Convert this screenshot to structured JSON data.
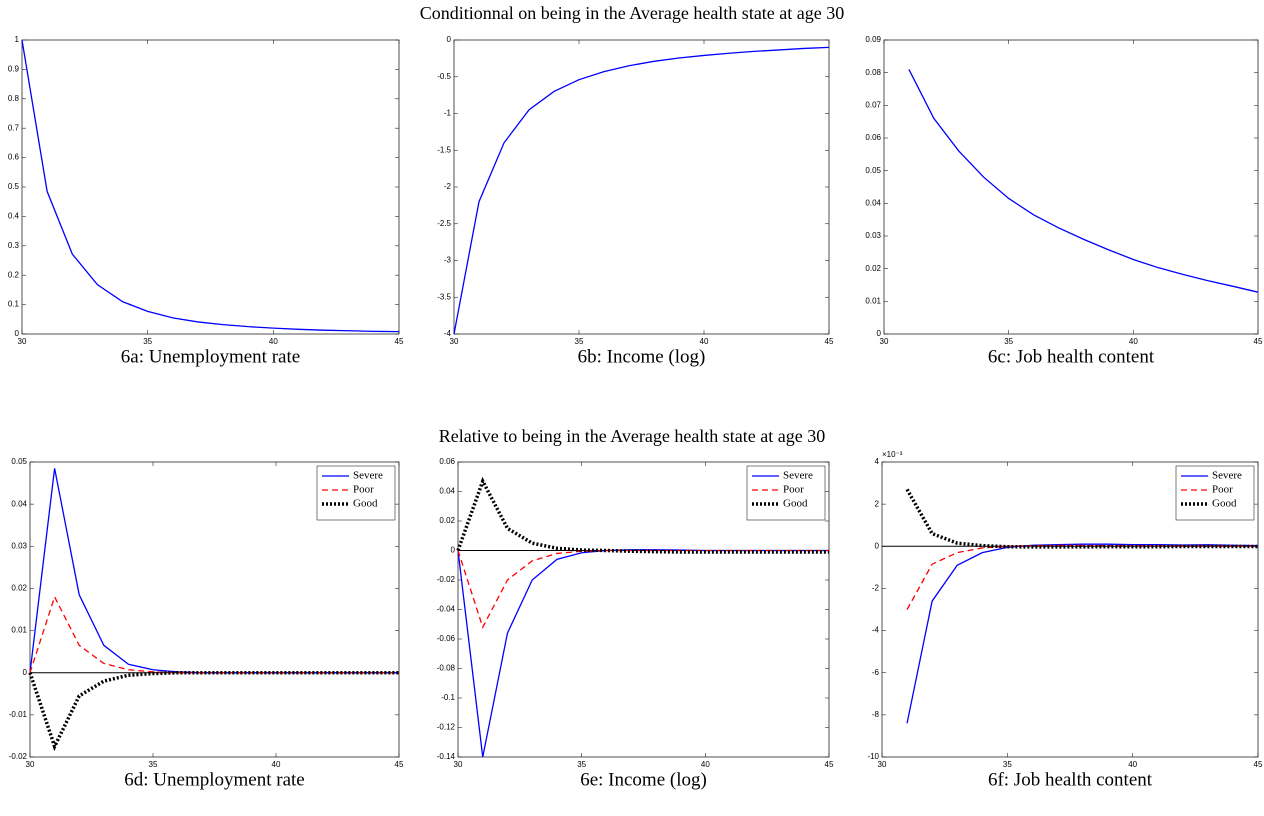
{
  "headings": [
    "Conditionnal on being in the Average health state at age 30",
    "Relative to being in the Average health state at age 30"
  ],
  "chart_data": [
    {
      "type": "line",
      "caption": "6a: Unemployment rate",
      "color": "#0000ff",
      "x": [
        30,
        31,
        32,
        33,
        34,
        35,
        36,
        37,
        38,
        39,
        40,
        41,
        42,
        43,
        44,
        45
      ],
      "values": [
        1,
        0.485,
        0.272,
        0.168,
        0.11,
        0.077,
        0.055,
        0.041,
        0.032,
        0.025,
        0.02,
        0.016,
        0.013,
        0.011,
        0.009,
        0.008
      ],
      "xlim": [
        30,
        45
      ],
      "xticks": [
        30,
        35,
        40,
        45
      ],
      "ylim": [
        0,
        1
      ],
      "yticks": [
        0,
        0.1,
        0.2,
        0.3,
        0.4,
        0.5,
        0.6,
        0.7,
        0.8,
        0.9,
        1
      ]
    },
    {
      "type": "line",
      "caption": "6b: Income (log)",
      "color": "#0000ff",
      "x": [
        30,
        31,
        32,
        33,
        34,
        35,
        36,
        37,
        38,
        39,
        40,
        41,
        42,
        43,
        44,
        45
      ],
      "values": [
        -4,
        -2.2,
        -1.4,
        -0.95,
        -0.7,
        -0.54,
        -0.43,
        -0.35,
        -0.29,
        -0.245,
        -0.21,
        -0.18,
        -0.155,
        -0.135,
        -0.115,
        -0.1
      ],
      "xlim": [
        30,
        45
      ],
      "xticks": [
        30,
        35,
        40,
        45
      ],
      "ylim": [
        -4,
        0
      ],
      "yticks": [
        -4,
        -3.5,
        -3,
        -2.5,
        -2,
        -1.5,
        -1,
        -0.5,
        0
      ]
    },
    {
      "type": "line",
      "caption": "6c: Job health content",
      "color": "#0000ff",
      "x": [
        31,
        32,
        33,
        34,
        35,
        36,
        37,
        38,
        39,
        40,
        41,
        42,
        43,
        44,
        45
      ],
      "values": [
        0.081,
        0.066,
        0.056,
        0.048,
        0.0415,
        0.0365,
        0.0325,
        0.029,
        0.0258,
        0.0228,
        0.0203,
        0.0182,
        0.0163,
        0.0146,
        0.0128
      ],
      "xlim": [
        30,
        45
      ],
      "xticks": [
        30,
        35,
        40,
        45
      ],
      "ylim": [
        0,
        0.09
      ],
      "yticks": [
        0,
        0.01,
        0.02,
        0.03,
        0.04,
        0.05,
        0.06,
        0.07,
        0.08,
        0.09
      ]
    },
    {
      "type": "line",
      "caption": "6d: Unemployment rate",
      "zero_line": true,
      "legend": "upper right",
      "x": [
        30,
        31,
        32,
        33,
        34,
        35,
        36,
        37,
        38,
        39,
        40,
        41,
        42,
        43,
        44,
        45
      ],
      "series": [
        {
          "name": "Severe",
          "color": "#0000ff",
          "dash": "solid",
          "values": [
            0,
            0.0485,
            0.0185,
            0.0065,
            0.002,
            0.0007,
            0.0002,
            0,
            0,
            0,
            0,
            0,
            0,
            0,
            0,
            0
          ]
        },
        {
          "name": "Poor",
          "color": "#ff0000",
          "dash": "dashed",
          "values": [
            0,
            0.018,
            0.0065,
            0.0022,
            0.0007,
            0.0002,
            0,
            0,
            0,
            0,
            0,
            0,
            0,
            0,
            0,
            0
          ]
        },
        {
          "name": "Good",
          "color": "#000000",
          "dash": "dotted",
          "values": [
            0,
            -0.0175,
            -0.0055,
            -0.002,
            -0.0006,
            -0.0002,
            0,
            0,
            0,
            0,
            0,
            0,
            0,
            0,
            0,
            0
          ]
        }
      ],
      "xlim": [
        30,
        45
      ],
      "xticks": [
        30,
        35,
        40,
        45
      ],
      "ylim": [
        -0.02,
        0.05
      ],
      "yticks": [
        -0.02,
        -0.01,
        0,
        0.01,
        0.02,
        0.03,
        0.04,
        0.05
      ]
    },
    {
      "type": "line",
      "caption": "6e: Income (log)",
      "zero_line": true,
      "legend": "upper right",
      "x": [
        30,
        31,
        32,
        33,
        34,
        35,
        36,
        37,
        38,
        39,
        40,
        41,
        42,
        43,
        44,
        45
      ],
      "series": [
        {
          "name": "Severe",
          "color": "#0000ff",
          "dash": "solid",
          "values": [
            0,
            -0.14,
            -0.056,
            -0.02,
            -0.006,
            -0.0015,
            0,
            0.0005,
            0.0005,
            0.0003,
            0,
            0,
            0,
            0,
            0,
            0
          ]
        },
        {
          "name": "Poor",
          "color": "#ff0000",
          "dash": "dashed",
          "values": [
            0,
            -0.052,
            -0.02,
            -0.007,
            -0.002,
            -0.0005,
            0,
            0,
            0,
            0,
            0,
            0,
            0,
            0,
            0,
            0
          ]
        },
        {
          "name": "Good",
          "color": "#000000",
          "dash": "dotted",
          "values": [
            0,
            0.047,
            0.015,
            0.005,
            0.0015,
            0.0003,
            0,
            -0.0005,
            -0.0008,
            -0.001,
            -0.001,
            -0.001,
            -0.001,
            -0.001,
            -0.001,
            -0.001
          ]
        }
      ],
      "xlim": [
        30,
        45
      ],
      "xticks": [
        30,
        35,
        40,
        45
      ],
      "ylim": [
        -0.14,
        0.06
      ],
      "yticks": [
        -0.14,
        -0.12,
        -0.1,
        -0.08,
        -0.06,
        -0.04,
        -0.02,
        0,
        0.02,
        0.04,
        0.06
      ]
    },
    {
      "type": "line",
      "caption": "6f: Job health content",
      "zero_line": true,
      "legend": "upper right",
      "y_multiplier": "×10⁻³",
      "x": [
        31,
        32,
        33,
        34,
        35,
        36,
        37,
        38,
        39,
        40,
        41,
        42,
        43,
        44,
        45
      ],
      "series": [
        {
          "name": "Severe",
          "color": "#0000ff",
          "dash": "solid",
          "values": [
            -8.4,
            -2.6,
            -0.9,
            -0.3,
            -0.05,
            0.05,
            0.08,
            0.1,
            0.1,
            0.08,
            0.08,
            0.06,
            0.07,
            0.05,
            0.03
          ]
        },
        {
          "name": "Poor",
          "color": "#ff0000",
          "dash": "dashed",
          "values": [
            -3,
            -0.85,
            -0.3,
            -0.08,
            0,
            0.03,
            0.04,
            0.04,
            0.03,
            0.03,
            0.02,
            0.02,
            0.02,
            0.01,
            0.01
          ]
        },
        {
          "name": "Good",
          "color": "#000000",
          "dash": "dotted",
          "values": [
            2.7,
            0.6,
            0.15,
            0.03,
            -0.02,
            -0.03,
            -0.03,
            -0.03,
            -0.02,
            -0.02,
            -0.02,
            -0.01,
            -0.01,
            -0.01,
            -0.01
          ]
        }
      ],
      "xlim": [
        30,
        45
      ],
      "xticks": [
        30,
        35,
        40,
        45
      ],
      "ylim": [
        -10,
        4
      ],
      "yticks": [
        -10,
        -8,
        -6,
        -4,
        -2,
        0,
        2,
        4
      ]
    }
  ]
}
